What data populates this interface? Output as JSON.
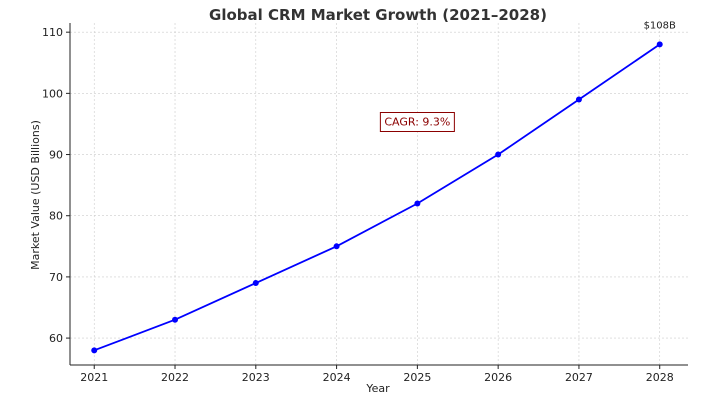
{
  "chart_data": {
    "type": "line",
    "title": "Global CRM Market Growth (2021–2028)",
    "xlabel": "Year",
    "ylabel": "Market Value (USD Billions)",
    "x": [
      2021,
      2022,
      2023,
      2024,
      2025,
      2026,
      2027,
      2028
    ],
    "x_tick_labels": [
      "2021",
      "2022",
      "2023",
      "2024",
      "2025",
      "2026",
      "2027",
      "2028"
    ],
    "y_ticks": [
      60,
      70,
      80,
      90,
      100,
      110
    ],
    "y_tick_labels": [
      "60",
      "70",
      "80",
      "90",
      "100",
      "110"
    ],
    "ylim": [
      55.6,
      111.5
    ],
    "xlim": [
      2020.7,
      2028.35
    ],
    "grid": true,
    "series": [
      {
        "values": [
          58,
          63,
          69,
          75,
          82,
          90,
          99,
          108
        ],
        "color": "#0000ff",
        "marker": "circle"
      }
    ],
    "annotations": [
      {
        "text": "CAGR: 9.3%",
        "x": 2025,
        "y": 95.4,
        "color": "#8b0000",
        "boxed": true
      },
      {
        "text": "$108B",
        "x": 2028,
        "y": 110.6,
        "color": "#222222",
        "boxed": false
      }
    ]
  }
}
